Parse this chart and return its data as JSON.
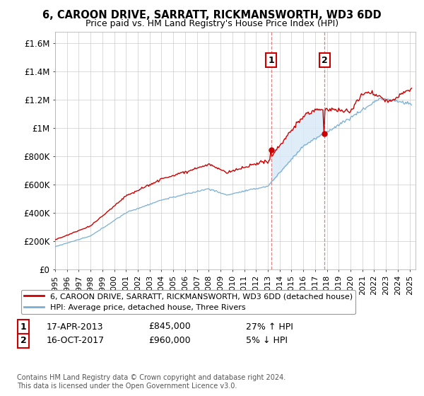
{
  "title": "6, CAROON DRIVE, SARRATT, RICKMANSWORTH, WD3 6DD",
  "subtitle": "Price paid vs. HM Land Registry's House Price Index (HPI)",
  "ylabel_ticks": [
    "£0",
    "£200K",
    "£400K",
    "£600K",
    "£800K",
    "£1M",
    "£1.2M",
    "£1.4M",
    "£1.6M"
  ],
  "ytick_values": [
    0,
    200000,
    400000,
    600000,
    800000,
    1000000,
    1200000,
    1400000,
    1600000
  ],
  "ylim": [
    0,
    1680000
  ],
  "xlim_start": 1995.0,
  "xlim_end": 2025.5,
  "legend_line1": "6, CAROON DRIVE, SARRATT, RICKMANSWORTH, WD3 6DD (detached house)",
  "legend_line2": "HPI: Average price, detached house, Three Rivers",
  "sale1_date": "17-APR-2013",
  "sale1_price": "£845,000",
  "sale1_pct": "27% ↑ HPI",
  "sale1_x": 2013.29,
  "sale1_y": 845000,
  "sale2_date": "16-OCT-2017",
  "sale2_price": "£960,000",
  "sale2_pct": "5% ↓ HPI",
  "sale2_x": 2017.79,
  "sale2_y": 960000,
  "footnote": "Contains HM Land Registry data © Crown copyright and database right 2024.\nThis data is licensed under the Open Government Licence v3.0.",
  "line_color_red": "#cc0000",
  "line_color_blue": "#7aafd4",
  "shade_color": "#daeaf7",
  "grid_color": "#cccccc",
  "background_color": "#ffffff",
  "marker_box_color": "#cc0000"
}
